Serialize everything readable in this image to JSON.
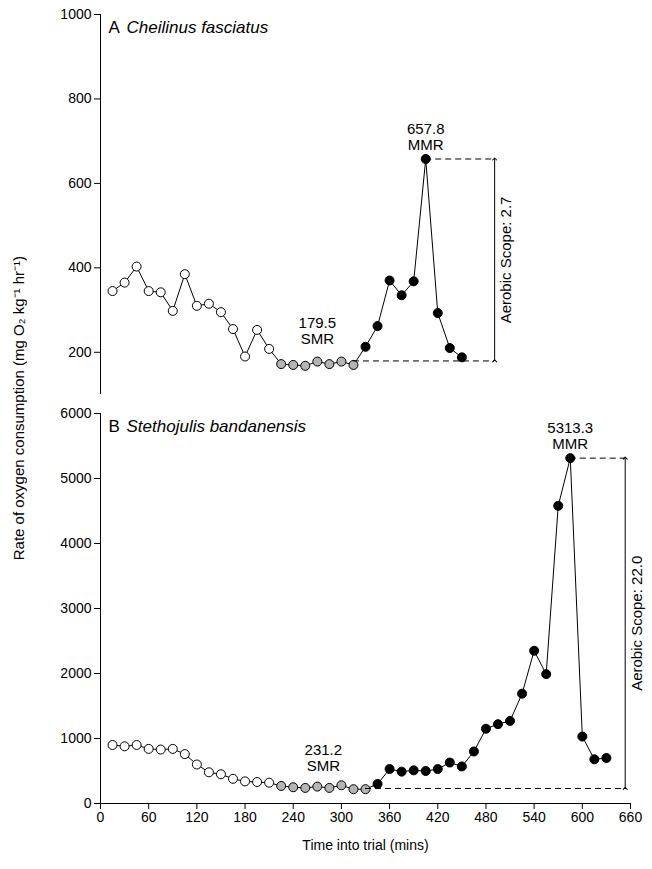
{
  "chart_data": {
    "type": "line",
    "x_label": "Time into trial (mins)",
    "y_label": "Rate of oxygen consumption (mg O₂ kg⁻¹ hr⁻¹)",
    "xlim": [
      0,
      660
    ],
    "xticks": [
      0,
      60,
      120,
      180,
      240,
      300,
      360,
      420,
      480,
      540,
      600,
      660
    ],
    "marker": "circle",
    "line_style": "solid",
    "panels": [
      {
        "panel_label": "A",
        "title": "Cheilinus fasciatus",
        "tick_labels": "y",
        "ylim": [
          100,
          1000
        ],
        "yticks": [
          200,
          400,
          600,
          800,
          1000
        ],
        "color": "#000000",
        "x": [
          15,
          30,
          45,
          60,
          75,
          90,
          105,
          120,
          135,
          150,
          165,
          180,
          195,
          210,
          225,
          240,
          255,
          270,
          285,
          300,
          315,
          330,
          345,
          360,
          375,
          390,
          405,
          420,
          435,
          450
        ],
        "values": [
          345,
          365,
          403,
          345,
          342,
          298,
          385,
          310,
          315,
          295,
          255,
          190,
          253,
          208,
          172,
          170,
          168,
          178,
          172,
          178,
          170,
          213,
          262,
          370,
          335,
          368,
          657.8,
          293,
          210,
          188
        ],
        "colors": [
          "#ffffff",
          "#ffffff",
          "#ffffff",
          "#ffffff",
          "#ffffff",
          "#ffffff",
          "#ffffff",
          "#ffffff",
          "#ffffff",
          "#ffffff",
          "#ffffff",
          "#ffffff",
          "#ffffff",
          "#ffffff",
          "#b4b4b4",
          "#b4b4b4",
          "#b4b4b4",
          "#b4b4b4",
          "#b4b4b4",
          "#b4b4b4",
          "#b4b4b4",
          "#000000",
          "#000000",
          "#000000",
          "#000000",
          "#000000",
          "#000000",
          "#000000",
          "#000000",
          "#000000"
        ],
        "smr": 179.5,
        "smr_label": "SMR",
        "mmr": 657.8,
        "mmr_label": "MMR",
        "annotation": "Aerobic Scope: 2.7"
      },
      {
        "panel_label": "B",
        "title": "Stethojulis bandanensis",
        "tick_labels": true,
        "ylim": [
          0,
          6000
        ],
        "yticks": [
          0,
          1000,
          2000,
          3000,
          4000,
          5000,
          6000
        ],
        "color": "#000000",
        "x": [
          15,
          30,
          45,
          60,
          75,
          90,
          105,
          120,
          135,
          150,
          165,
          180,
          195,
          210,
          225,
          240,
          255,
          270,
          285,
          300,
          315,
          330,
          345,
          360,
          375,
          390,
          405,
          420,
          435,
          450,
          465,
          480,
          495,
          510,
          525,
          540,
          555,
          570,
          585,
          600,
          615,
          630
        ],
        "values": [
          900,
          880,
          900,
          840,
          830,
          840,
          760,
          600,
          480,
          450,
          380,
          340,
          330,
          320,
          270,
          250,
          240,
          260,
          240,
          280,
          220,
          220,
          300,
          530,
          490,
          510,
          500,
          530,
          630,
          570,
          800,
          1150,
          1220,
          1270,
          1690,
          2350,
          1990,
          4580,
          5313.3,
          1030,
          680,
          700
        ],
        "colors": [
          "#ffffff",
          "#ffffff",
          "#ffffff",
          "#ffffff",
          "#ffffff",
          "#ffffff",
          "#ffffff",
          "#ffffff",
          "#ffffff",
          "#ffffff",
          "#ffffff",
          "#ffffff",
          "#ffffff",
          "#ffffff",
          "#b4b4b4",
          "#b4b4b4",
          "#b4b4b4",
          "#b4b4b4",
          "#b4b4b4",
          "#b4b4b4",
          "#b4b4b4",
          "#b4b4b4",
          "#000000",
          "#000000",
          "#000000",
          "#000000",
          "#000000",
          "#000000",
          "#000000",
          "#000000",
          "#000000",
          "#000000",
          "#000000",
          "#000000",
          "#000000",
          "#000000",
          "#000000",
          "#000000",
          "#000000",
          "#000000",
          "#000000",
          "#000000"
        ],
        "smr": 231.2,
        "smr_label": "SMR",
        "mmr": 5313.3,
        "mmr_label": "MMR",
        "annotation": "Aerobic Scope: 22.0"
      }
    ]
  }
}
